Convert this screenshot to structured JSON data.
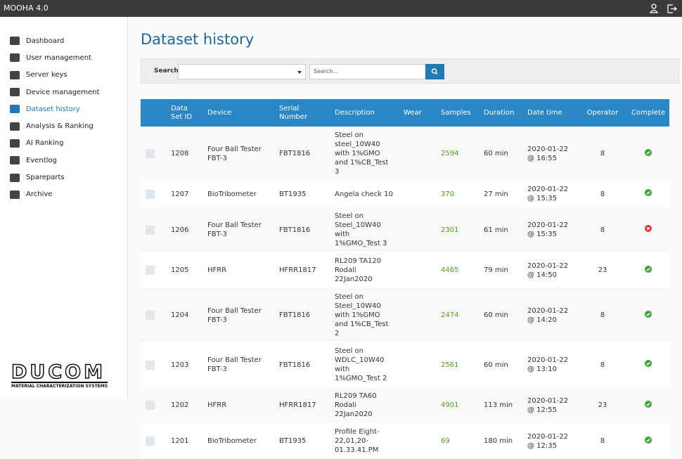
{
  "topbar": {
    "title": "MOOHA 4.0"
  },
  "sidebar": {
    "items": [
      "Dashboard",
      "User management",
      "Server keys",
      "Device management",
      "Dataset history",
      "Analysis & Ranking",
      "AI Ranking",
      "Eventlog",
      "Spareparts",
      "Archive"
    ],
    "active": 4,
    "logo": {
      "name": "DUCOM",
      "tagline": "MATERIAL CHARACTERIZATION SYSTEMS"
    }
  },
  "main": {
    "title": "Dataset history",
    "search": {
      "label": "Search",
      "placeholder": "Search..."
    },
    "table": {
      "columns": [
        "Data Set ID",
        "Device",
        "Serial Number",
        "Description",
        "Wear",
        "Samples",
        "Duration",
        "Date time",
        "Operator",
        "Complete"
      ],
      "rows": [
        {
          "id": "1208",
          "device": "Four Ball Tester FBT-3",
          "serial": "FBT1816",
          "description": "Steel on steel_10W40 with 1%GMO and 1%CB_Test 3",
          "wear": null,
          "samples": "2594",
          "duration": "60 min",
          "datetime": "2020-01-22 @ 16:55",
          "operator": "8",
          "complete": true
        },
        {
          "id": "1207",
          "device": "BioTribometer",
          "serial": "BT1935",
          "description": "Angela check 10",
          "wear": null,
          "samples": "370",
          "duration": "27 min",
          "datetime": "2020-01-22 @ 15:35",
          "operator": "8",
          "complete": true
        },
        {
          "id": "1206",
          "device": "Four Ball Tester FBT-3",
          "serial": "FBT1816",
          "description": "Steel on Steel_10W40 with 1%GMO_Test 3",
          "wear": null,
          "samples": "2301",
          "duration": "61 min",
          "datetime": "2020-01-22 @ 15:35",
          "operator": "8",
          "complete": false
        },
        {
          "id": "1205",
          "device": "HFRR",
          "serial": "HFRR1817",
          "description": "RL209 TA120 Rodali 22Jan2020",
          "wear": null,
          "samples": "4465",
          "duration": "79 min",
          "datetime": "2020-01-22 @ 14:50",
          "operator": "23",
          "complete": true
        },
        {
          "id": "1204",
          "device": "Four Ball Tester FBT-3",
          "serial": "FBT1816",
          "description": "Steel on Steel_10W40 with 1%GMO and 1%CB_Test 2",
          "wear": null,
          "samples": "2474",
          "duration": "60 min",
          "datetime": "2020-01-22 @ 14:20",
          "operator": "8",
          "complete": true
        },
        {
          "id": "1203",
          "device": "Four Ball Tester FBT-3",
          "serial": "FBT1816",
          "description": "Steel on WDLC_10W40 with 1%GMO_Test 2",
          "wear": null,
          "samples": "2561",
          "duration": "60 min",
          "datetime": "2020-01-22 @ 13:10",
          "operator": "8",
          "complete": true
        },
        {
          "id": "1202",
          "device": "HFRR",
          "serial": "HFRR1817",
          "description": "RL209 TA60 Rodali 22Jan2020",
          "wear": null,
          "samples": "4901",
          "duration": "113 min",
          "datetime": "2020-01-22 @ 12:55",
          "operator": "23",
          "complete": true
        },
        {
          "id": "1201",
          "device": "BioTribometer",
          "serial": "BT1935",
          "description": "Profile Eight-22,01,20-01.33.41.PM",
          "wear": null,
          "samples": "69",
          "duration": "180 min",
          "datetime": "2020-01-22 @ 12:35",
          "operator": "8",
          "complete": true
        }
      ]
    }
  }
}
